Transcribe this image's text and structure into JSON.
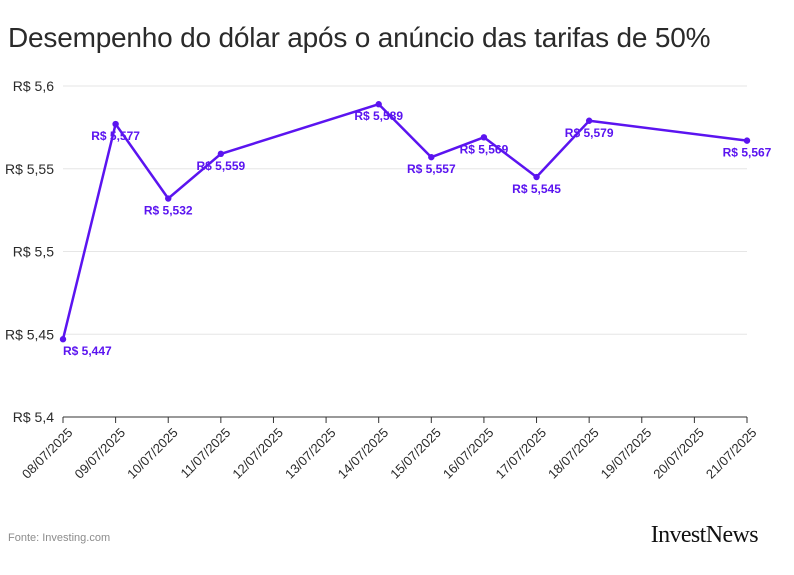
{
  "title": "Desempenho do dólar após o anúncio das tarifas de 50%",
  "source": "Fonte: Investing.com",
  "brand": "InvestNews",
  "colors": {
    "line": "#5b14f0",
    "label": "#5b14f0",
    "grid": "#e6e6e6",
    "axis": "#333333",
    "text": "#2a2a2a"
  },
  "chart_data": {
    "type": "line",
    "title": "Desempenho do dólar após o anúncio das tarifas de 50%",
    "xlabel": "",
    "ylabel": "",
    "ylim": [
      5.4,
      5.6
    ],
    "yticks": [
      5.4,
      5.45,
      5.5,
      5.55,
      5.6
    ],
    "ytick_labels": [
      "R$ 5,4",
      "R$ 5,45",
      "R$ 5,5",
      "R$ 5,55",
      "R$ 5,6"
    ],
    "categories": [
      "08/07/2025",
      "09/07/2025",
      "10/07/2025",
      "11/07/2025",
      "12/07/2025",
      "13/07/2025",
      "14/07/2025",
      "15/07/2025",
      "16/07/2025",
      "17/07/2025",
      "18/07/2025",
      "19/07/2025",
      "20/07/2025",
      "21/07/2025"
    ],
    "series": [
      {
        "name": "Dólar",
        "values": [
          5.447,
          5.577,
          5.532,
          5.559,
          null,
          null,
          5.589,
          5.557,
          5.569,
          5.545,
          5.579,
          null,
          null,
          5.567
        ],
        "labels": [
          "R$ 5,447",
          "R$ 5,577",
          "R$ 5,532",
          "R$ 5,559",
          null,
          null,
          "R$ 5,589",
          "R$ 5,557",
          "R$ 5,569",
          "R$ 5,545",
          "R$ 5,579",
          null,
          null,
          "R$ 5,567"
        ]
      }
    ],
    "grid": true
  }
}
